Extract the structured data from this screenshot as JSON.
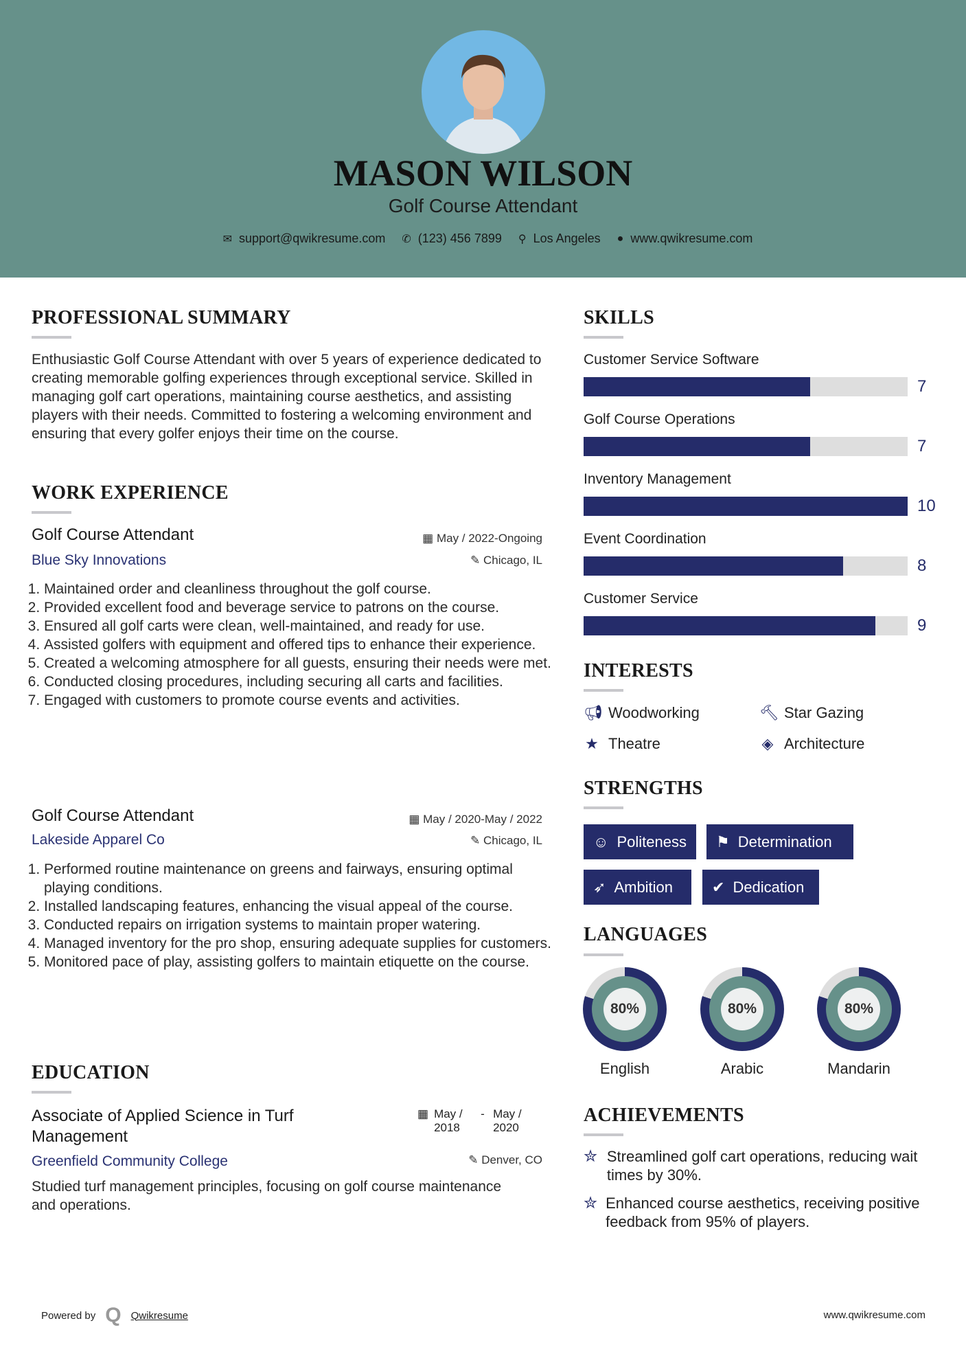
{
  "header": {
    "name": "MASON WILSON",
    "title": "Golf Course Attendant",
    "contacts": {
      "email": "support@qwikresume.com",
      "phone": "(123) 456 7899",
      "location": "Los Angeles",
      "website": "www.qwikresume.com"
    }
  },
  "summary": {
    "heading": "PROFESSIONAL SUMMARY",
    "text": "Enthusiastic Golf Course Attendant with over 5 years of experience dedicated to creating memorable golfing experiences through exceptional service. Skilled in managing golf cart operations, maintaining course aesthetics, and assisting players with their needs. Committed to fostering a welcoming environment and ensuring that every golfer enjoys their time on the course."
  },
  "work": {
    "heading": "WORK EXPERIENCE",
    "jobs": [
      {
        "title": "Golf Course Attendant",
        "company": "Blue Sky Innovations",
        "dates": "May / 2022-Ongoing",
        "location": "Chicago, IL",
        "items": [
          "Maintained order and cleanliness throughout the golf course.",
          "Provided excellent food and beverage service to patrons on the course.",
          "Ensured all golf carts were clean, well-maintained, and ready for use.",
          "Assisted golfers with equipment and offered tips to enhance their experience.",
          "Created a welcoming atmosphere for all guests, ensuring their needs were met.",
          "Conducted closing procedures, including securing all carts and facilities.",
          "Engaged with customers to promote course events and activities."
        ]
      },
      {
        "title": "Golf Course Attendant",
        "company": "Lakeside Apparel Co",
        "dates": "May / 2020-May / 2022",
        "location": "Chicago, IL",
        "items": [
          "Performed routine maintenance on greens and fairways, ensuring optimal playing conditions.",
          "Installed landscaping features, enhancing the visual appeal of the course.",
          "Conducted repairs on irrigation systems to maintain proper watering.",
          "Managed inventory for the pro shop, ensuring adequate supplies for customers.",
          "Monitored pace of play, assisting golfers to maintain etiquette on the course."
        ]
      }
    ]
  },
  "education": {
    "heading": "EDUCATION",
    "degree": "Associate of Applied Science in Turf Management",
    "school": "Greenfield Community College",
    "start": "May / 2018",
    "end": "May / 2020",
    "location": "Denver, CO",
    "text": "Studied turf management principles, focusing on golf course maintenance and operations."
  },
  "skills": {
    "heading": "SKILLS",
    "max": 10,
    "items": [
      {
        "label": "Customer Service Software",
        "value": 7
      },
      {
        "label": "Golf Course Operations",
        "value": 7
      },
      {
        "label": "Inventory Management",
        "value": 10
      },
      {
        "label": "Event Coordination",
        "value": 8
      },
      {
        "label": "Customer Service",
        "value": 9
      }
    ]
  },
  "interests": {
    "heading": "INTERESTS",
    "items": [
      {
        "label": "Woodworking",
        "icon": "megaphone-icon"
      },
      {
        "label": "Star Gazing",
        "icon": "gavel-icon"
      },
      {
        "label": "Theatre",
        "icon": "star-icon"
      },
      {
        "label": "Architecture",
        "icon": "tag-icon"
      }
    ]
  },
  "strengths": {
    "heading": "STRENGTHS",
    "items": [
      {
        "label": "Politeness",
        "icon": "smile-icon"
      },
      {
        "label": "Determination",
        "icon": "flag-icon"
      },
      {
        "label": "Ambition",
        "icon": "rocket-icon"
      },
      {
        "label": "Dedication",
        "icon": "check-circle-icon"
      }
    ]
  },
  "languages": {
    "heading": "LANGUAGES",
    "items": [
      {
        "label": "English",
        "percent": 80,
        "text": "80%"
      },
      {
        "label": "Arabic",
        "percent": 80,
        "text": "80%"
      },
      {
        "label": "Mandarin",
        "percent": 80,
        "text": "80%"
      }
    ]
  },
  "achievements": {
    "heading": "ACHIEVEMENTS",
    "items": [
      "Streamlined golf cart operations, reducing wait times by 30%.",
      "Enhanced course aesthetics, receiving positive feedback from 95% of players."
    ]
  },
  "footer": {
    "powered": "Powered by",
    "brand": "Qwikresume",
    "site": "www.qwikresume.com"
  },
  "colors": {
    "header": "#66918a",
    "accent": "#252c6a",
    "track": "#dedede"
  }
}
